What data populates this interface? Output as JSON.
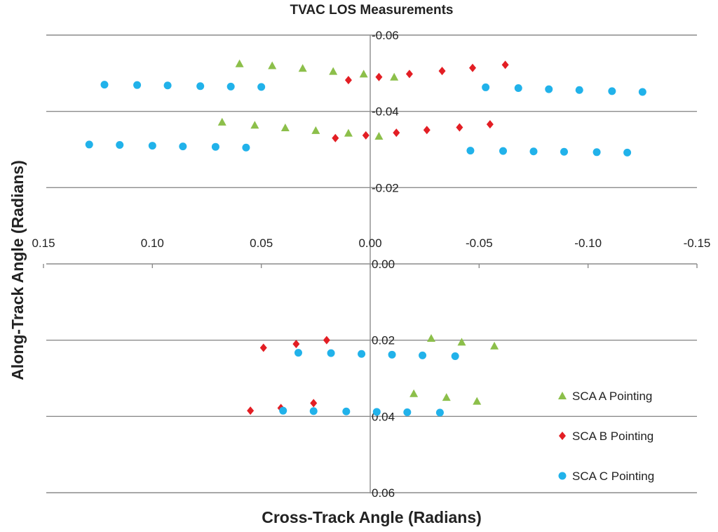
{
  "chart_data": {
    "type": "scatter",
    "title": "TVAC LOS Measurements",
    "xlabel": "Cross-Track Angle (Radians)",
    "ylabel": "Along-Track Angle (Radians)",
    "xlim": [
      0.15,
      -0.15
    ],
    "ylim": [
      -0.06,
      0.06
    ],
    "x_ticks": [
      0.15,
      0.1,
      0.05,
      0.0,
      -0.05,
      -0.1,
      -0.15
    ],
    "x_tick_labels": [
      "0.15",
      "0.10",
      "0.05",
      "0.00",
      "-0.05",
      "-0.10",
      "-0.15"
    ],
    "y_ticks": [
      -0.06,
      -0.04,
      -0.02,
      0.0,
      0.02,
      0.04,
      0.06
    ],
    "y_tick_labels": [
      "-0.06",
      "-0.04",
      "-0.02",
      "0.00",
      "0.02",
      "0.04",
      "0.06"
    ],
    "grid": "horizontal",
    "legend_position": "bottom-right",
    "series": [
      {
        "name": "SCA A Pointing",
        "marker": "triangle",
        "color": "#8cbf4a",
        "points": [
          [
            0.06,
            -0.0525
          ],
          [
            0.045,
            -0.052
          ],
          [
            0.031,
            -0.0513
          ],
          [
            0.017,
            -0.0505
          ],
          [
            0.003,
            -0.0498
          ],
          [
            -0.011,
            -0.049
          ],
          [
            0.068,
            -0.0372
          ],
          [
            0.053,
            -0.0364
          ],
          [
            0.039,
            -0.0357
          ],
          [
            0.025,
            -0.035
          ],
          [
            0.01,
            -0.0343
          ],
          [
            -0.004,
            -0.0335
          ],
          [
            -0.028,
            0.0195
          ],
          [
            -0.042,
            0.0205
          ],
          [
            -0.057,
            0.0215
          ],
          [
            -0.02,
            0.034
          ],
          [
            -0.035,
            0.035
          ],
          [
            -0.049,
            0.036
          ]
        ]
      },
      {
        "name": "SCA B Pointing",
        "marker": "diamond",
        "color": "#e31e24",
        "points": [
          [
            0.01,
            -0.0482
          ],
          [
            -0.004,
            -0.049
          ],
          [
            -0.018,
            -0.0498
          ],
          [
            -0.033,
            -0.0506
          ],
          [
            -0.047,
            -0.0514
          ],
          [
            -0.062,
            -0.0522
          ],
          [
            0.016,
            -0.033
          ],
          [
            0.002,
            -0.0337
          ],
          [
            -0.012,
            -0.0344
          ],
          [
            -0.026,
            -0.0351
          ],
          [
            -0.041,
            -0.0358
          ],
          [
            -0.055,
            -0.0366
          ],
          [
            0.049,
            0.022
          ],
          [
            0.034,
            0.021
          ],
          [
            0.02,
            0.02
          ],
          [
            0.055,
            0.0385
          ],
          [
            0.041,
            0.0378
          ],
          [
            0.026,
            0.0365
          ]
        ]
      },
      {
        "name": "SCA C Pointing",
        "marker": "circle",
        "color": "#21b2ea",
        "points": [
          [
            0.122,
            -0.047
          ],
          [
            0.107,
            -0.0469
          ],
          [
            0.093,
            -0.0468
          ],
          [
            0.078,
            -0.0466
          ],
          [
            0.064,
            -0.0465
          ],
          [
            0.05,
            -0.0464
          ],
          [
            -0.053,
            -0.0463
          ],
          [
            -0.068,
            -0.0461
          ],
          [
            -0.082,
            -0.0458
          ],
          [
            -0.096,
            -0.0456
          ],
          [
            -0.111,
            -0.0453
          ],
          [
            -0.125,
            -0.0451
          ],
          [
            0.129,
            -0.0313
          ],
          [
            0.115,
            -0.0312
          ],
          [
            0.1,
            -0.031
          ],
          [
            0.086,
            -0.0308
          ],
          [
            0.071,
            -0.0307
          ],
          [
            0.057,
            -0.0305
          ],
          [
            -0.046,
            -0.0297
          ],
          [
            -0.061,
            -0.0296
          ],
          [
            -0.075,
            -0.0295
          ],
          [
            -0.089,
            -0.0294
          ],
          [
            -0.104,
            -0.0293
          ],
          [
            -0.118,
            -0.0292
          ],
          [
            0.033,
            0.0233
          ],
          [
            0.018,
            0.0234
          ],
          [
            0.004,
            0.0236
          ],
          [
            -0.01,
            0.0238
          ],
          [
            -0.024,
            0.024
          ],
          [
            -0.039,
            0.0242
          ],
          [
            0.04,
            0.0385
          ],
          [
            0.026,
            0.0386
          ],
          [
            0.011,
            0.0387
          ],
          [
            -0.003,
            0.0388
          ],
          [
            -0.017,
            0.0389
          ],
          [
            -0.032,
            0.039
          ]
        ]
      }
    ]
  }
}
